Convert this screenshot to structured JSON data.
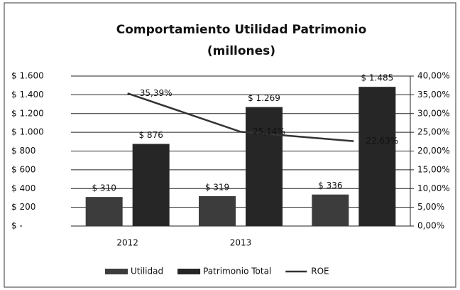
{
  "chart_data": {
    "type": "bar",
    "title": "Comportamiento Utilidad  Patrimonio",
    "subtitle": "(millones)",
    "categories": [
      "2012",
      "2013",
      null
    ],
    "series": [
      {
        "name": "Utilidad",
        "color": "#3c3c3c",
        "values": [
          310,
          319,
          336
        ],
        "value_labels": [
          "$ 310",
          "$ 319",
          "$ 336"
        ]
      },
      {
        "name": "Patrimonio Total",
        "color": "#262626",
        "values": [
          876,
          1269,
          1485
        ],
        "value_labels": [
          "$ 876",
          "$ 1.269",
          "$ 1.485"
        ]
      },
      {
        "name": "ROE",
        "type": "line",
        "axis": "y2",
        "color": "#333333",
        "values": [
          35.39,
          25.14,
          22.63
        ],
        "value_labels": [
          "35,39%",
          "25,14%",
          "22,63%"
        ]
      }
    ],
    "ylim": [
      0,
      1600
    ],
    "yticks": [
      {
        "value": 0,
        "label": "$ -"
      },
      {
        "value": 200,
        "label": "$ 200"
      },
      {
        "value": 400,
        "label": "$ 400"
      },
      {
        "value": 600,
        "label": "$ 600"
      },
      {
        "value": 800,
        "label": "$ 800"
      },
      {
        "value": 1000,
        "label": "$ 1.000"
      },
      {
        "value": 1200,
        "label": "$ 1.200"
      },
      {
        "value": 1400,
        "label": "$ 1.400"
      },
      {
        "value": 1600,
        "label": "$ 1.600"
      }
    ],
    "y2lim": [
      0,
      40
    ],
    "y2ticks": [
      {
        "value": 0,
        "label": "0,00%"
      },
      {
        "value": 5,
        "label": "5,00%"
      },
      {
        "value": 10,
        "label": "10,00%"
      },
      {
        "value": 15,
        "label": "15,00%"
      },
      {
        "value": 20,
        "label": "20,00%"
      },
      {
        "value": 25,
        "label": "25,00%"
      },
      {
        "value": 30,
        "label": "30,00%"
      },
      {
        "value": 35,
        "label": "35,00%"
      },
      {
        "value": 40,
        "label": "40,00%"
      }
    ],
    "grid": true,
    "legend": "bottom"
  }
}
